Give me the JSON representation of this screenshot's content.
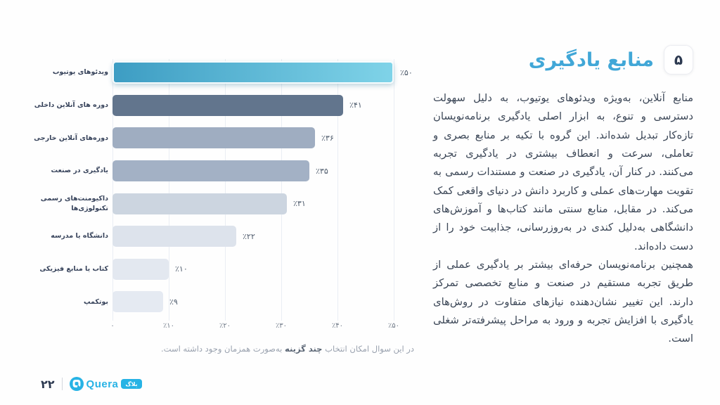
{
  "header": {
    "number_badge": "۵",
    "title": "منابع یادگیری",
    "title_color": "#41a7d7"
  },
  "body": {
    "paragraph1": "منابع آنلاین، به‌ویژه ویدئوهای یوتیوب، به دلیل سهولت دسترسی و تنوع، به ابزار اصلی یادگیری برنامه‌نویسان تازه‌کار تبدیل شده‌اند. این گروه با تکیه بر منابع بصری و تعاملی، سرعت و انعطاف بیشتری در یادگیری تجربه می‌کنند. در کنار آن، یادگیری در صنعت و مستندات رسمی به تقویت مهارت‌های عملی و کاربرد دانش در دنیای واقعی کمک می‌کند. در مقابل، منابع سنتی مانند کتاب‌ها و آموزش‌های دانشگاهی به‌دلیل کندی در به‌روزرسانی، جذابیت خود را از دست داده‌اند.",
    "paragraph2": "همچنین برنامه‌نویسان حرفه‌ای بیشتر بر یادگیری عملی از طریق تجربه مستقیم در صنعت و منابع تخصصی تمرکز دارند. این تغییر نشان‌دهنده نیازهای متفاوت در روش‌های یادگیری با افزایش تجربه و ورود به مراحل پیشرفته‌تر شغلی است."
  },
  "caption": {
    "prefix": "در این سوال امکان انتخاب ",
    "bold": "چند گزینه",
    "suffix": " به‌صورت همزمان وجود داشته است."
  },
  "footer": {
    "page_number": "۲۲",
    "brand_name": "Quera",
    "brand_badge": "بلاگ",
    "brand_color": "#27b3e5"
  },
  "chart_data": {
    "type": "bar",
    "orientation": "horizontal",
    "title": "",
    "xlabel": "",
    "ylabel": "",
    "xlim": [
      0,
      50
    ],
    "grid": true,
    "categories": [
      "ویدئوهای یوتیوب",
      "دوره های آنلاین داخلی",
      "دوره‌های آنلاین خارجی",
      "یادگیری در صنعت",
      "داکیومنت‌های رسمی تکنولوژی‌ها",
      "دانشگاه یا مدرسه",
      "کتاب یا منابع فیزیکی",
      "بوتکمپ"
    ],
    "values": [
      50,
      41,
      36,
      35,
      31,
      22,
      10,
      9
    ],
    "value_labels": [
      "٪۵۰",
      "٪۴۱",
      "٪۳۶",
      "٪۳۵",
      "٪۳۱",
      "٪۲۲",
      "٪۱۰",
      "٪۹"
    ],
    "x_ticks": [
      "۰",
      "٪۱۰",
      "٪۲۰",
      "٪۳۰",
      "٪۴۰",
      "٪۵۰"
    ],
    "bar_colors": [
      {
        "type": "gradient",
        "from": "#3d9dc3",
        "to": "#7fd3e8"
      },
      {
        "type": "solid",
        "color": "#62758d"
      },
      {
        "type": "solid",
        "color": "#9fadc1"
      },
      {
        "type": "solid",
        "color": "#a3b1c5"
      },
      {
        "type": "solid",
        "color": "#ccd5e0"
      },
      {
        "type": "solid",
        "color": "#dde3ec"
      },
      {
        "type": "solid",
        "color": "#e3e8f0"
      },
      {
        "type": "solid",
        "color": "#e5eaf2"
      }
    ]
  }
}
